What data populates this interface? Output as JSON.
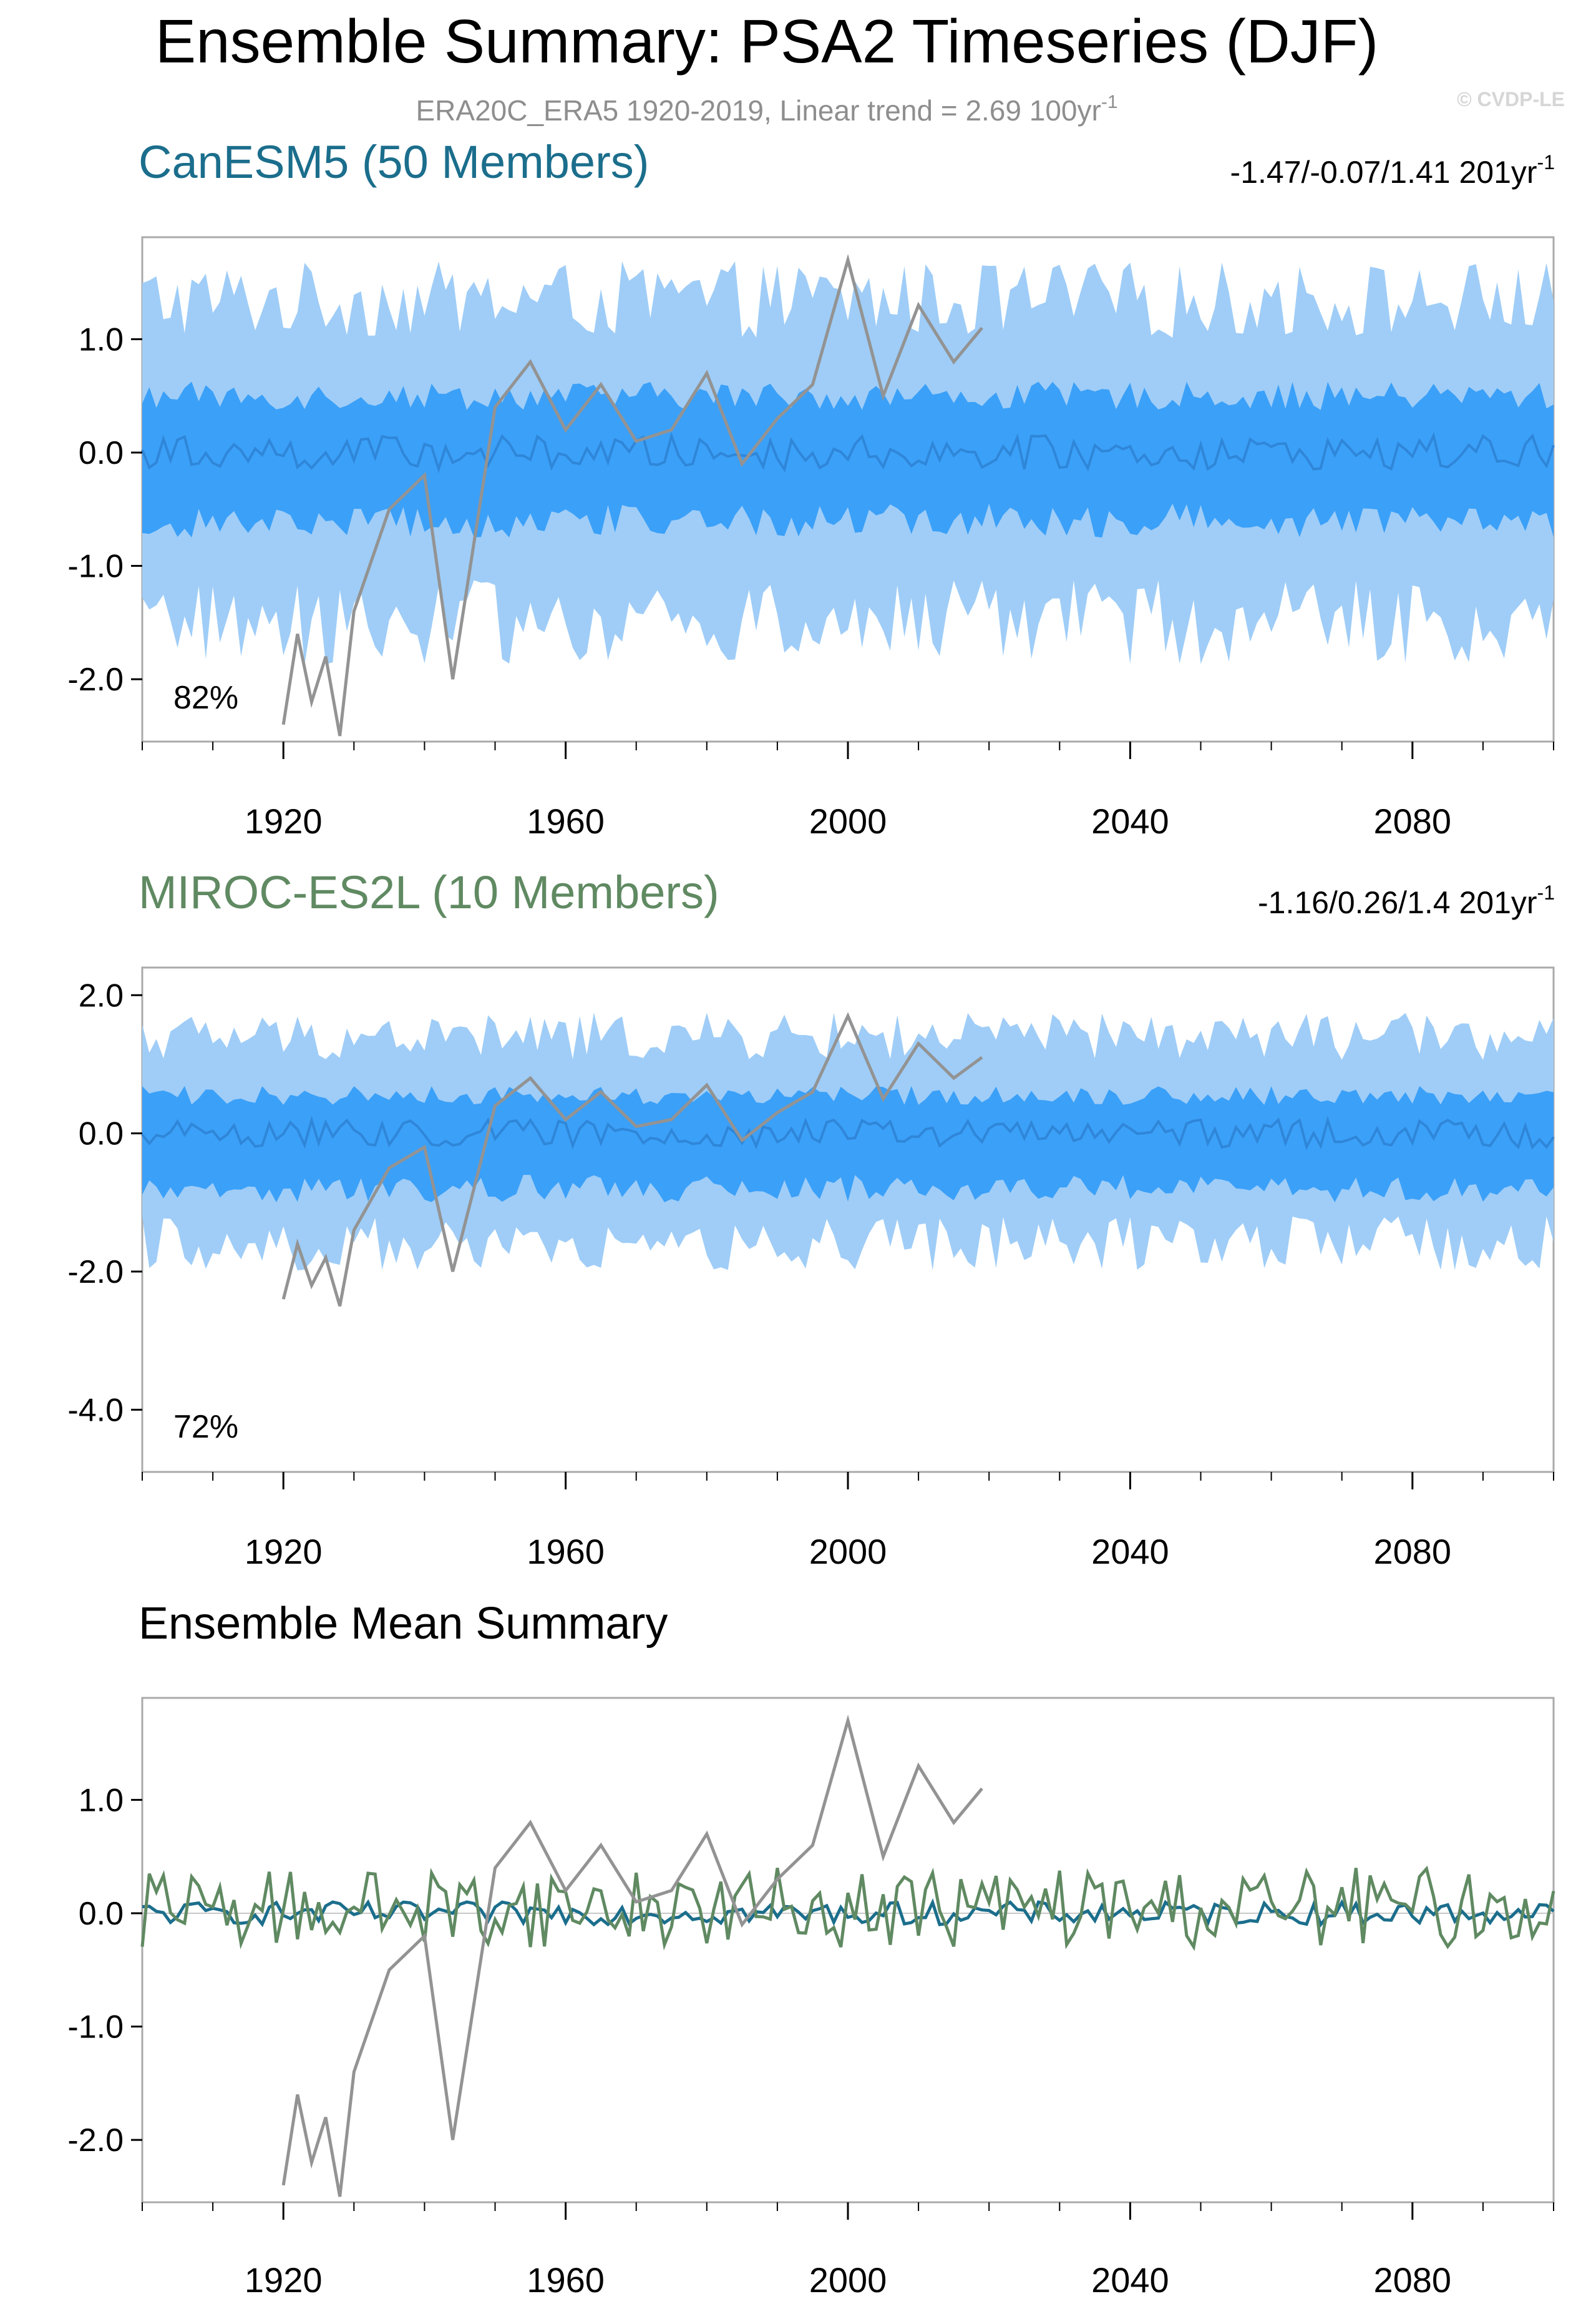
{
  "figure": {
    "title": "Ensemble Summary: PSA2 Timeseries (DJF)",
    "subtitle_main": "ERA20C_ERA5 1920-2019, Linear trend = 2.69 100yr",
    "subtitle_sup": "-1",
    "watermark": "© CVDP-LE",
    "colors": {
      "band_outer": "#9fcdf7",
      "band_inner": "#3ba0f8",
      "ens_mean_line": "#2f86d8",
      "observed": "#939393",
      "canesm5": "#1b6e8c",
      "miroc": "#608a62",
      "axis": "#000000",
      "frame": "#aaaaaa"
    }
  },
  "chart_data": [
    {
      "type": "area",
      "title": "CanESM5 (50 Members)",
      "trend_main": "-1.47/-0.07/1.41 201yr",
      "trend_sup": "-1",
      "percent_label": "82%",
      "xlim": [
        1900,
        2100
      ],
      "ylim": [
        -2.55,
        1.9
      ],
      "x_ticks": [
        1920,
        1960,
        2000,
        2040,
        2080
      ],
      "y_ticks": [
        "1.0",
        "0.0",
        "-1.0",
        "-2.0"
      ],
      "y_tick_values": [
        1,
        0,
        -1,
        -2
      ],
      "series": [
        {
          "role": "outer-band",
          "x_start": 1900,
          "x_end": 2100,
          "amplitude_upper": 1.35,
          "amplitude_lower": -1.5
        },
        {
          "role": "inner-band",
          "x_start": 1900,
          "x_end": 2100,
          "amplitude_upper": 0.5,
          "amplitude_lower": -0.6
        },
        {
          "role": "ensemble-mean",
          "x_start": 1900,
          "x_end": 2100,
          "level": 0.0,
          "noise": 0.15
        },
        {
          "role": "observed",
          "x": [
            1920,
            1922,
            1924,
            1926,
            1928,
            1930,
            1935,
            1940,
            1944,
            1950,
            1955,
            1960,
            1965,
            1970,
            1975,
            1980,
            1985,
            1990,
            1995,
            2000,
            2005,
            2010,
            2015,
            2019
          ],
          "y": [
            -2.4,
            -1.6,
            -2.2,
            -1.8,
            -2.5,
            -1.4,
            -0.5,
            -0.2,
            -2.0,
            0.4,
            0.8,
            0.2,
            0.6,
            0.1,
            0.2,
            0.7,
            -0.1,
            0.3,
            0.6,
            1.7,
            0.5,
            1.3,
            0.8,
            1.1
          ]
        }
      ]
    },
    {
      "type": "area",
      "title": "MIROC-ES2L (10 Members)",
      "trend_main": "-1.16/0.26/1.4 201yr",
      "trend_sup": "-1",
      "percent_label": "72%",
      "xlim": [
        1900,
        2100
      ],
      "ylim": [
        -4.9,
        2.4
      ],
      "x_ticks": [
        1920,
        1960,
        2000,
        2040,
        2080
      ],
      "y_ticks": [
        "2.0",
        "0.0",
        "-2.0",
        "-4.0"
      ],
      "y_tick_values": [
        2,
        0,
        -2,
        -4
      ],
      "series": [
        {
          "role": "outer-band",
          "x_start": 1900,
          "x_end": 2100,
          "amplitude_upper": 1.4,
          "amplitude_lower": -1.6
        },
        {
          "role": "inner-band",
          "x_start": 1900,
          "x_end": 2100,
          "amplitude_upper": 0.55,
          "amplitude_lower": -0.8
        },
        {
          "role": "ensemble-mean",
          "x_start": 1900,
          "x_end": 2100,
          "level": 0.0,
          "noise": 0.2
        },
        {
          "role": "observed",
          "x": [
            1920,
            1922,
            1924,
            1926,
            1928,
            1930,
            1935,
            1940,
            1944,
            1950,
            1955,
            1960,
            1965,
            1970,
            1975,
            1980,
            1985,
            1990,
            1995,
            2000,
            2005,
            2010,
            2015,
            2019
          ],
          "y": [
            -2.4,
            -1.6,
            -2.2,
            -1.8,
            -2.5,
            -1.4,
            -0.5,
            -0.2,
            -2.0,
            0.4,
            0.8,
            0.2,
            0.6,
            0.1,
            0.2,
            0.7,
            -0.1,
            0.3,
            0.6,
            1.7,
            0.5,
            1.3,
            0.8,
            1.1
          ]
        }
      ]
    },
    {
      "type": "line",
      "title": "Ensemble Mean Summary",
      "xlim": [
        1900,
        2100
      ],
      "ylim": [
        -2.55,
        1.9
      ],
      "x_ticks": [
        1920,
        1960,
        2000,
        2040,
        2080
      ],
      "y_ticks": [
        "1.0",
        "0.0",
        "-1.0",
        "-2.0"
      ],
      "y_tick_values": [
        1,
        0,
        -1,
        -2
      ],
      "series": [
        {
          "role": "observed",
          "x": [
            1920,
            1922,
            1924,
            1926,
            1928,
            1930,
            1935,
            1940,
            1944,
            1950,
            1955,
            1960,
            1965,
            1970,
            1975,
            1980,
            1985,
            1990,
            1995,
            2000,
            2005,
            2010,
            2015,
            2019
          ],
          "y": [
            -2.4,
            -1.6,
            -2.2,
            -1.8,
            -2.5,
            -1.4,
            -0.5,
            -0.2,
            -2.0,
            0.4,
            0.8,
            0.2,
            0.6,
            0.1,
            0.2,
            0.7,
            -0.1,
            0.3,
            0.6,
            1.7,
            0.5,
            1.3,
            0.8,
            1.1
          ]
        },
        {
          "role": "canesm5-mean",
          "x_start": 1900,
          "x_end": 2100,
          "level": 0.0,
          "noise": 0.1
        },
        {
          "role": "miroc-mean",
          "x_start": 1900,
          "x_end": 2100,
          "level": 0.05,
          "noise": 0.35
        }
      ]
    }
  ]
}
